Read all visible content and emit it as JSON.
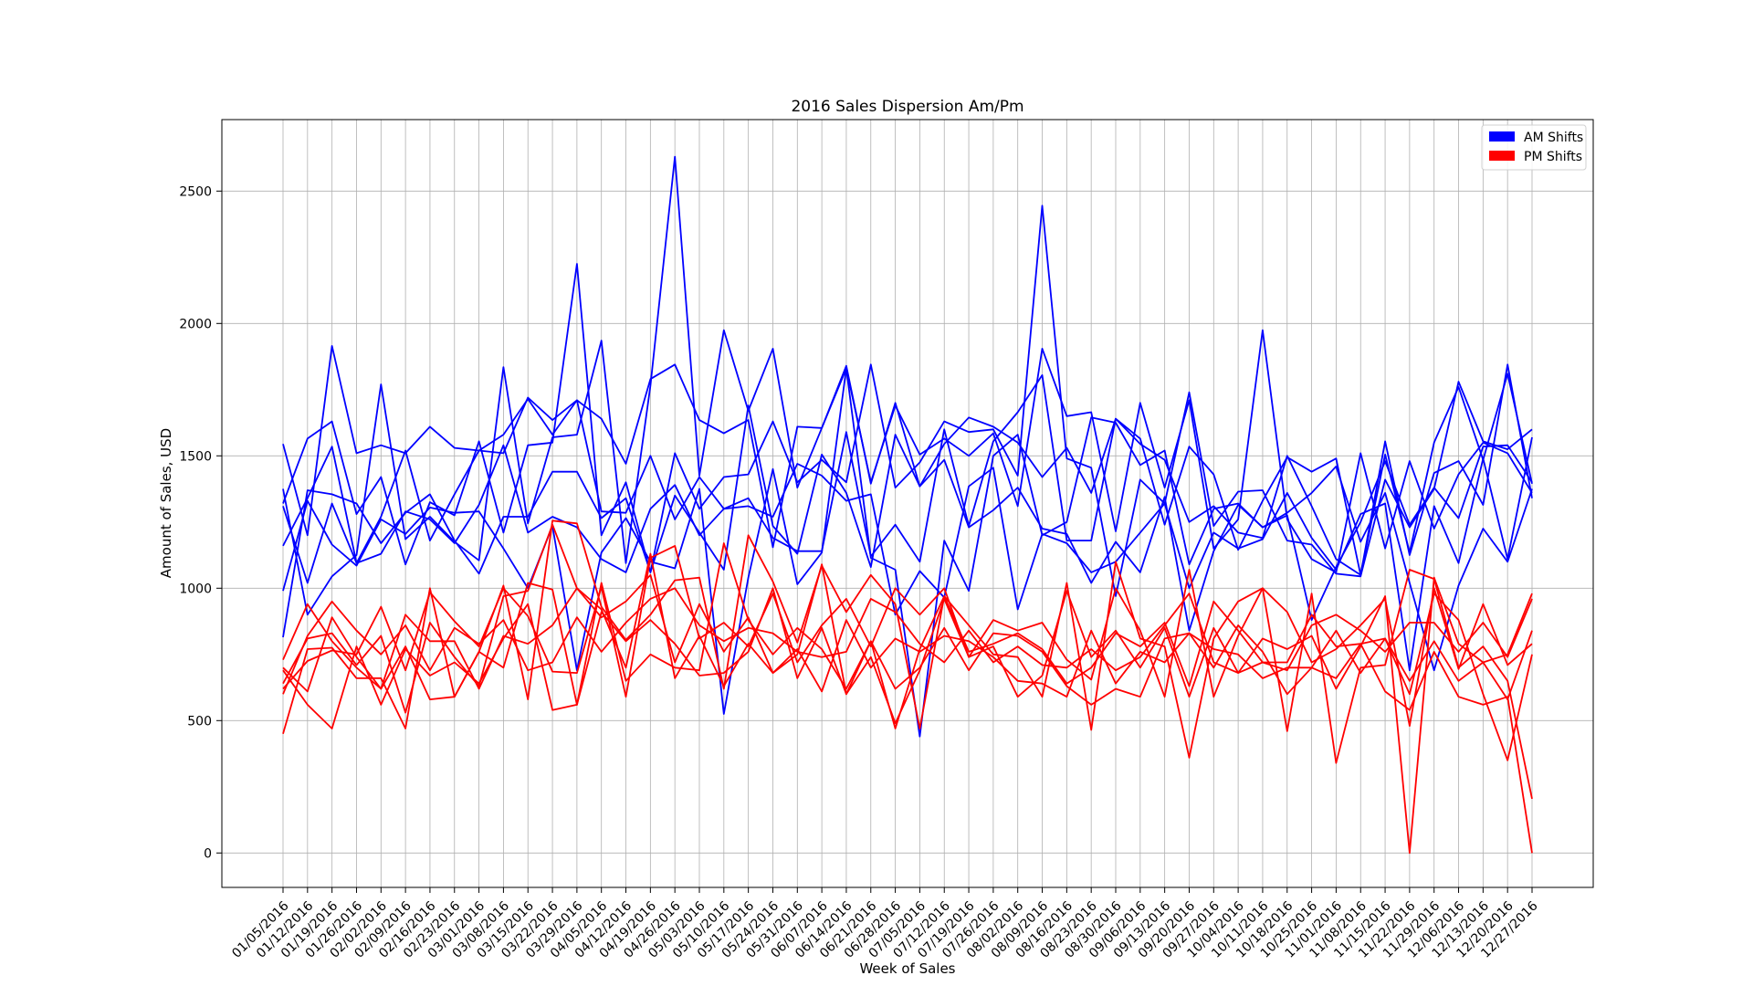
{
  "chart_data": {
    "type": "line",
    "title": "2016 Sales Dispersion Am/Pm",
    "xlabel": "Week of Sales",
    "ylabel": "Amount of Sales, USD",
    "ylim": [
      -130,
      2770
    ],
    "yticks": [
      0,
      500,
      1000,
      1500,
      2000,
      2500
    ],
    "grid": true,
    "legend_position": "top-right",
    "categories": [
      "01/05/2016",
      "01/12/2016",
      "01/19/2016",
      "01/26/2016",
      "02/02/2016",
      "02/09/2016",
      "02/16/2016",
      "02/23/2016",
      "03/01/2016",
      "03/08/2016",
      "03/15/2016",
      "03/22/2016",
      "03/29/2016",
      "04/05/2016",
      "04/12/2016",
      "04/19/2016",
      "04/26/2016",
      "05/03/2016",
      "05/10/2016",
      "05/17/2016",
      "05/24/2016",
      "05/31/2016",
      "06/07/2016",
      "06/14/2016",
      "06/21/2016",
      "06/28/2016",
      "07/05/2016",
      "07/12/2016",
      "07/19/2016",
      "07/26/2016",
      "08/02/2016",
      "08/09/2016",
      "08/16/2016",
      "08/23/2016",
      "08/30/2016",
      "09/06/2016",
      "09/13/2016",
      "09/20/2016",
      "09/27/2016",
      "10/04/2016",
      "10/11/2016",
      "10/18/2016",
      "10/25/2016",
      "11/01/2016",
      "11/08/2016",
      "11/15/2016",
      "11/22/2016",
      "11/29/2016",
      "12/06/2016",
      "12/13/2016",
      "12/20/2016",
      "12/27/2016"
    ],
    "legend": [
      {
        "label": "AM Shifts",
        "color": "#0000ff"
      },
      {
        "label": "PM Shifts",
        "color": "#ff0000"
      }
    ],
    "series": [
      {
        "group": "am",
        "color": "#0000ff",
        "values": [
          1545,
          1200,
          1915,
          1510,
          1540,
          1510,
          1610,
          1530,
          1520,
          1580,
          1715,
          1580,
          1710,
          1640,
          1470,
          1790,
          1845,
          1635,
          1585,
          1635,
          1155,
          1610,
          1605,
          1840,
          1395,
          1700,
          1385,
          1545,
          1645,
          1610,
          1550,
          1420,
          1530,
          1360,
          1640,
          1565,
          1240,
          1535,
          1430,
          1145,
          1330,
          1495,
          1440,
          1490,
          1050,
          1555,
          1125,
          1435,
          1480,
          1315,
          1845,
          1340
        ]
      },
      {
        "group": "am",
        "color": "#0000ff",
        "values": [
          1375,
          900,
          1045,
          1125,
          1770,
          1185,
          1270,
          1175,
          1105,
          1835,
          1245,
          1570,
          1580,
          1935,
          1095,
          1765,
          2630,
          1425,
          1975,
          1670,
          1905,
          1380,
          1605,
          1830,
          1400,
          1690,
          1505,
          1565,
          1500,
          1585,
          1310,
          1905,
          1650,
          1665,
          1215,
          1700,
          1380,
          1710,
          1150,
          1260,
          1975,
          1260,
          1110,
          1060,
          1510,
          1150,
          1480,
          1225,
          1430,
          1550,
          1510,
          1360
        ]
      },
      {
        "group": "am",
        "color": "#0000ff",
        "values": [
          1320,
          1565,
          1630,
          1280,
          1420,
          1090,
          1325,
          1275,
          1555,
          1210,
          1540,
          1550,
          2225,
          1200,
          1400,
          1060,
          1510,
          1300,
          1420,
          1430,
          1630,
          1400,
          1485,
          1400,
          1845,
          1380,
          1475,
          1630,
          1590,
          1600,
          1425,
          2445,
          1490,
          1455,
          970,
          1410,
          1320,
          1740,
          1235,
          1365,
          1370,
          1180,
          1165,
          1055,
          1045,
          1410,
          1230,
          1375,
          1780,
          1555,
          1525,
          1600
        ]
      },
      {
        "group": "am",
        "color": "#0000ff",
        "values": [
          1160,
          1340,
          1535,
          1095,
          1270,
          1520,
          1180,
          1355,
          1520,
          1510,
          1720,
          1635,
          1710,
          1290,
          1285,
          1500,
          1260,
          1420,
          1300,
          1340,
          1190,
          1140,
          1140,
          1590,
          1120,
          1240,
          1100,
          1600,
          1235,
          1555,
          1665,
          1805,
          1180,
          1180,
          1640,
          1545,
          1485,
          1250,
          1310,
          1210,
          1190,
          1500,
          1310,
          1110,
          1050,
          1505,
          1135,
          1550,
          1760,
          1485,
          1810,
          1395
        ]
      },
      {
        "group": "am",
        "color": "#0000ff",
        "values": [
          990,
          1330,
          1165,
          1085,
          1260,
          1205,
          1305,
          1285,
          1290,
          1150,
          1000,
          1235,
          690,
          1135,
          1265,
          1100,
          1075,
          1375,
          525,
          1040,
          1450,
          1015,
          1135,
          1830,
          1115,
          1070,
          440,
          1180,
          990,
          1500,
          1580,
          1200,
          1250,
          1645,
          1625,
          1465,
          1520,
          1090,
          1300,
          1320,
          1230,
          1285,
          1360,
          1460,
          1175,
          1360,
          1020,
          690,
          1010,
          1225,
          1100,
          1375
        ]
      },
      {
        "group": "am",
        "color": "#0000ff",
        "values": [
          815,
          1370,
          1355,
          1320,
          1170,
          1285,
          1355,
          1180,
          1055,
          1270,
          1270,
          1440,
          1440,
          1265,
          1340,
          1060,
          1350,
          1210,
          1070,
          1690,
          1235,
          1130,
          1505,
          1360,
          1080,
          1580,
          1385,
          1485,
          1230,
          1295,
          1380,
          1225,
          1205,
          1020,
          1175,
          1060,
          1345,
          840,
          1140,
          1315,
          1230,
          1275,
          880,
          1080,
          1250,
          1480,
          1240,
          1380,
          1265,
          1535,
          1540,
          1400
        ]
      },
      {
        "group": "am",
        "color": "#0000ff",
        "values": [
          1310,
          1020,
          1320,
          1095,
          1130,
          1290,
          1260,
          1170,
          1315,
          1540,
          1210,
          1270,
          1230,
          1110,
          1060,
          1300,
          1390,
          1200,
          1300,
          1310,
          1270,
          1470,
          1425,
          1330,
          1355,
          900,
          1065,
          965,
          1385,
          1455,
          920,
          1205,
          1170,
          1060,
          1100,
          1210,
          1320,
          1000,
          1210,
          1150,
          1185,
          1360,
          1190,
          1070,
          1280,
          1320,
          690,
          1310,
          1095,
          1490,
          1110,
          1570
        ]
      },
      {
        "group": "pm",
        "color": "#ff0000",
        "values": [
          450,
          770,
          775,
          660,
          660,
          470,
          1000,
          590,
          760,
          1010,
          580,
          1255,
          1245,
          930,
          805,
          900,
          1030,
          1040,
          620,
          1200,
          1025,
          795,
          1085,
          910,
          1050,
          940,
          470,
          970,
          860,
          750,
          740,
          590,
          1020,
          465,
          1100,
          810,
          780,
          360,
          810,
          950,
          1000,
          460,
          980,
          340,
          700,
          710,
          1070,
          1035,
          700,
          780,
          650,
          205
        ]
      },
      {
        "group": "pm",
        "color": "#ff0000",
        "values": [
          620,
          725,
          765,
          750,
          930,
          690,
          985,
          875,
          780,
          1000,
          895,
          685,
          680,
          1005,
          590,
          1115,
          1160,
          810,
          870,
          780,
          980,
          720,
          860,
          960,
          780,
          1000,
          900,
          1000,
          740,
          880,
          840,
          870,
          730,
          655,
          1000,
          840,
          590,
          1070,
          590,
          820,
          1000,
          910,
          720,
          770,
          860,
          960,
          480,
          1000,
          695,
          940,
          710,
          790
        ]
      },
      {
        "group": "pm",
        "color": "#ff0000",
        "values": [
          730,
          940,
          800,
          700,
          620,
          780,
          580,
          590,
          760,
          700,
          1020,
          995,
          560,
          1020,
          650,
          750,
          700,
          690,
          1170,
          880,
          750,
          850,
          770,
          620,
          800,
          620,
          700,
          850,
          690,
          830,
          820,
          760,
          630,
          560,
          620,
          590,
          810,
          830,
          700,
          860,
          760,
          600,
          700,
          660,
          790,
          610,
          540,
          760,
          590,
          560,
          590,
          0
        ]
      },
      {
        "group": "pm",
        "color": "#ff0000",
        "values": [
          690,
          560,
          470,
          780,
          560,
          770,
          670,
          720,
          640,
          810,
          940,
          540,
          560,
          910,
          800,
          880,
          790,
          670,
          680,
          760,
          1000,
          660,
          850,
          600,
          800,
          470,
          770,
          970,
          760,
          790,
          830,
          770,
          640,
          700,
          830,
          780,
          870,
          630,
          950,
          840,
          720,
          720,
          900,
          780,
          790,
          810,
          650,
          800,
          650,
          720,
          580,
          840
        ]
      },
      {
        "group": "pm",
        "color": "#ff0000",
        "values": [
          640,
          810,
          830,
          710,
          820,
          530,
          870,
          740,
          630,
          970,
          990,
          1240,
          1000,
          920,
          700,
          1130,
          660,
          820,
          630,
          790,
          680,
          750,
          1090,
          600,
          740,
          490,
          690,
          960,
          740,
          780,
          590,
          670,
          990,
          740,
          840,
          700,
          850,
          590,
          850,
          680,
          810,
          770,
          820,
          620,
          780,
          970,
          0,
          1040,
          790,
          720,
          750,
          980
        ]
      },
      {
        "group": "pm",
        "color": "#ff0000",
        "values": [
          700,
          610,
          890,
          740,
          620,
          900,
          800,
          800,
          620,
          820,
          790,
          860,
          1000,
          890,
          950,
          1050,
          720,
          940,
          760,
          890,
          680,
          770,
          610,
          880,
          700,
          810,
          760,
          820,
          800,
          740,
          650,
          640,
          590,
          840,
          640,
          760,
          720,
          830,
          770,
          750,
          660,
          700,
          700,
          840,
          680,
          810,
          600,
          980,
          880,
          600,
          350,
          750
        ]
      },
      {
        "group": "pm",
        "color": "#ff0000",
        "values": [
          600,
          820,
          950,
          840,
          750,
          860,
          690,
          850,
          790,
          880,
          690,
          720,
          890,
          760,
          870,
          960,
          1000,
          860,
          800,
          850,
          830,
          760,
          740,
          760,
          960,
          910,
          790,
          720,
          840,
          720,
          780,
          710,
          700,
          770,
          690,
          740,
          860,
          980,
          720,
          680,
          720,
          690,
          860,
          900,
          840,
          760,
          870,
          870,
          760,
          870,
          740,
          960
        ]
      }
    ]
  }
}
